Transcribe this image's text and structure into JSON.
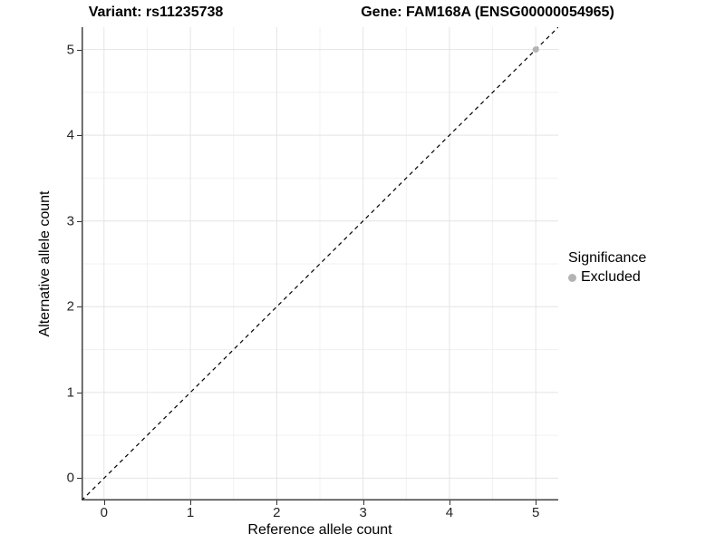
{
  "titles": {
    "variant": "Variant: rs11235738",
    "gene": "Gene: FAM168A (ENSG00000054965)"
  },
  "axes": {
    "x": {
      "label": "Reference allele count",
      "tick_labels": [
        "0",
        "1",
        "2",
        "3",
        "4",
        "5"
      ]
    },
    "y": {
      "label": "Alternative allele count",
      "tick_labels": [
        "0",
        "1",
        "2",
        "3",
        "4",
        "5"
      ]
    }
  },
  "legend": {
    "title": "Significance",
    "items": [
      {
        "label": "Excluded",
        "color": "#b4b4b4"
      }
    ]
  },
  "colors": {
    "background": "#ffffff",
    "major_grid": "#e4e4e4",
    "minor_grid": "#f1f1f1",
    "axis_line": "#404040",
    "tick_mark": "#333333",
    "reference_line": "#000000",
    "excluded_point": "#b4b4b4",
    "text": "#000000"
  },
  "chart_data": {
    "type": "scatter",
    "title": "Variant: rs11235738    Gene: FAM168A (ENSG00000054965)",
    "xlabel": "Reference allele count",
    "ylabel": "Alternative allele count",
    "xlim": [
      -0.26,
      5.26
    ],
    "ylim": [
      -0.26,
      5.26
    ],
    "x_ticks": [
      0,
      1,
      2,
      3,
      4,
      5
    ],
    "y_ticks": [
      0,
      1,
      2,
      3,
      4,
      5
    ],
    "grid": "major and minor gridlines, light gray on white",
    "legend_position": "right",
    "legend_title": "Significance",
    "series": [
      {
        "name": "Excluded",
        "color": "#b4b4b4",
        "marker": "circle",
        "points": [
          {
            "x": 5,
            "y": 5
          }
        ]
      }
    ],
    "reference_line": {
      "type": "identity",
      "slope": 1,
      "intercept": 0,
      "style": "dashed",
      "color": "#000000"
    }
  }
}
